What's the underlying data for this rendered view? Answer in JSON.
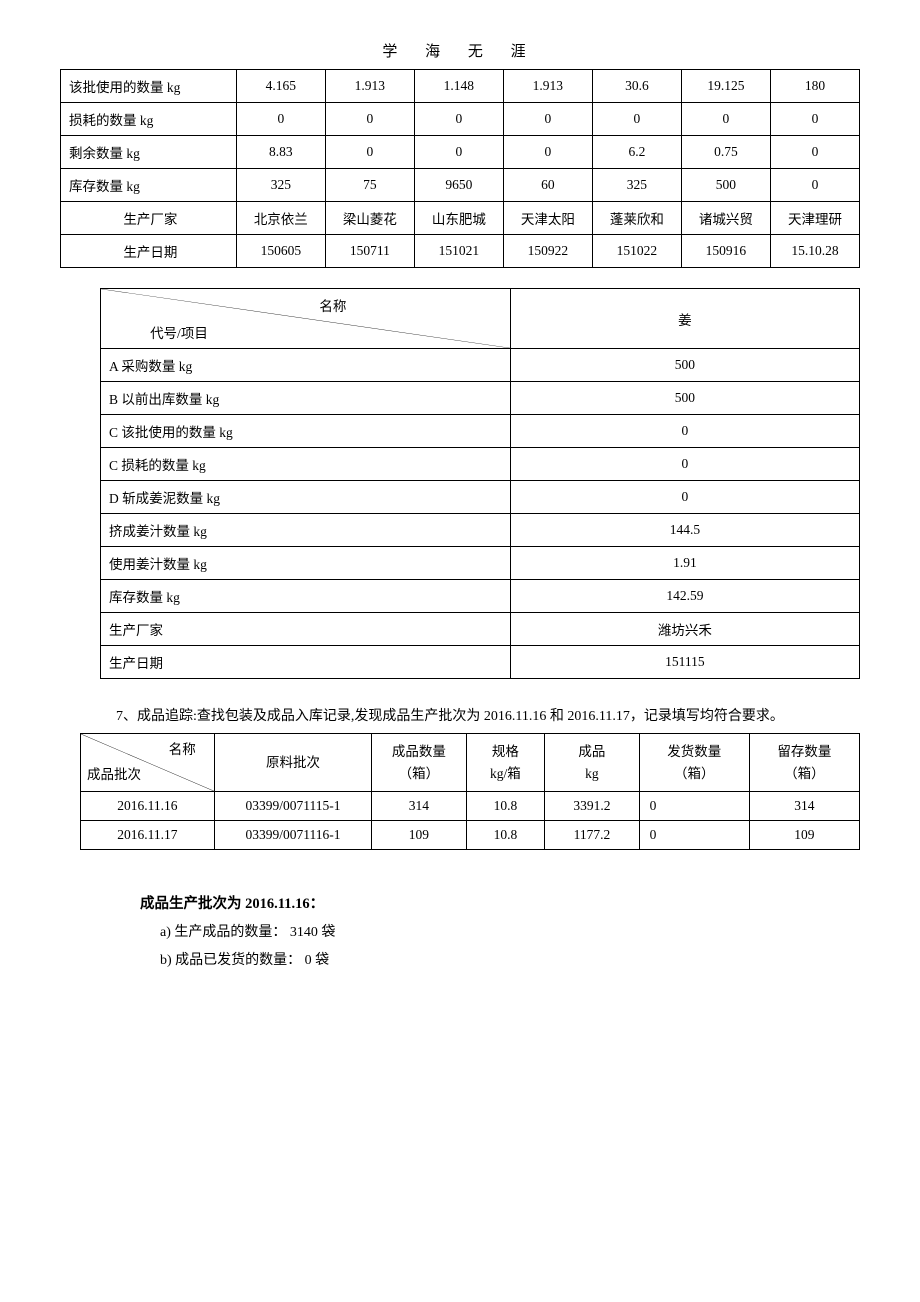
{
  "header": "学 海 无 涯",
  "table1": {
    "rows": [
      {
        "label": "该批使用的数量 kg",
        "cells": [
          "4.165",
          "1.913",
          "1.148",
          "1.913",
          "30.6",
          "19.125",
          "180"
        ]
      },
      {
        "label": "损耗的数量 kg",
        "cells": [
          "0",
          "0",
          "0",
          "0",
          "0",
          "0",
          "0"
        ]
      },
      {
        "label": "剩余数量 kg",
        "cells": [
          "8.83",
          "0",
          "0",
          "0",
          "6.2",
          "0.75",
          "0"
        ]
      },
      {
        "label": "库存数量 kg",
        "cells": [
          "325",
          "75",
          "9650",
          "60",
          "325",
          "500",
          "0"
        ]
      },
      {
        "label": "生产厂家",
        "cells": [
          "北京依兰",
          "梁山菱花",
          "山东肥城",
          "天津太阳",
          "蓬莱欣和",
          "诸城兴贸",
          "天津理研"
        ],
        "center": true
      },
      {
        "label": "生产日期",
        "cells": [
          "150605",
          "150711",
          "151021",
          "150922",
          "151022",
          "150916",
          "15.10.28"
        ],
        "center": true
      }
    ]
  },
  "table2": {
    "diag_top": "名称",
    "diag_bottom": "代号/项目",
    "col_header": "姜",
    "rows": [
      {
        "label": "A 采购数量 kg",
        "value": "500"
      },
      {
        "label": "B 以前出库数量 kg",
        "value": "500"
      },
      {
        "label": "C 该批使用的数量 kg",
        "value": "0"
      },
      {
        "label": "C 损耗的数量 kg",
        "value": "0"
      },
      {
        "label": "D 斩成姜泥数量 kg",
        "value": "0"
      },
      {
        "label": "挤成姜汁数量 kg",
        "value": "144.5"
      },
      {
        "label": "使用姜汁数量 kg",
        "value": "1.91"
      },
      {
        "label": "库存数量 kg",
        "value": "142.59"
      },
      {
        "label": "生产厂家",
        "value": "潍坊兴禾"
      },
      {
        "label": "生产日期",
        "value": "151115"
      }
    ]
  },
  "section7": "7、成品追踪:查找包装及成品入库记录,发现成品生产批次为 2016.11.16 和 2016.11.17，记录填写均符合要求。",
  "table3": {
    "diag_top": "名称",
    "diag_bottom": "成品批次",
    "headers": [
      "原料批次",
      "成品数量（箱）",
      "规格 kg/箱",
      "成品 kg",
      "发货数量（箱）",
      "留存数量（箱）"
    ],
    "headers_line1": [
      "原料批次",
      "成品数量",
      "规格",
      "成品",
      "发货数量",
      "留存数量"
    ],
    "headers_line2": [
      "",
      "（箱）",
      "kg/箱",
      "kg",
      "（箱）",
      "（箱）"
    ],
    "rows": [
      {
        "batch": "2016.11.16",
        "cells": [
          "03399/0071115-1",
          "314",
          "10.8",
          "3391.2",
          "0",
          "314"
        ]
      },
      {
        "batch": "2016.11.17",
        "cells": [
          "03399/0071116-1",
          "109",
          "10.8",
          "1177.2",
          "0",
          "109"
        ]
      }
    ]
  },
  "batch_section": {
    "title": "成品生产批次为 2016.11.16：",
    "items": [
      "a)  生产成品的数量：  3140 袋",
      "b)  成品已发货的数量：  0 袋"
    ]
  }
}
